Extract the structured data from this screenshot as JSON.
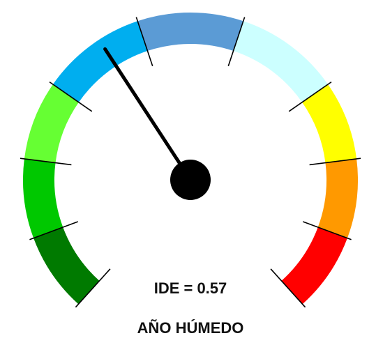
{
  "chart_data": {
    "type": "gauge",
    "values": [
      0.57
    ],
    "value_labels": [
      "IDE = 0.57"
    ],
    "annotation": "AÑO HÚMEDO",
    "ylim": [
      0,
      1.5
    ],
    "yticks": [
      0,
      0.15,
      0.3,
      0.45,
      0.65,
      0.85,
      1.05,
      1.2,
      1.35,
      1.5
    ],
    "band_colors": [
      "#007a00",
      "#00c800",
      "#66ff33",
      "#00aeef",
      "#5b9bd5",
      "#ccffff",
      "#ffff00",
      "#ff9900",
      "#ff0000"
    ],
    "needle_color": "#000000"
  }
}
